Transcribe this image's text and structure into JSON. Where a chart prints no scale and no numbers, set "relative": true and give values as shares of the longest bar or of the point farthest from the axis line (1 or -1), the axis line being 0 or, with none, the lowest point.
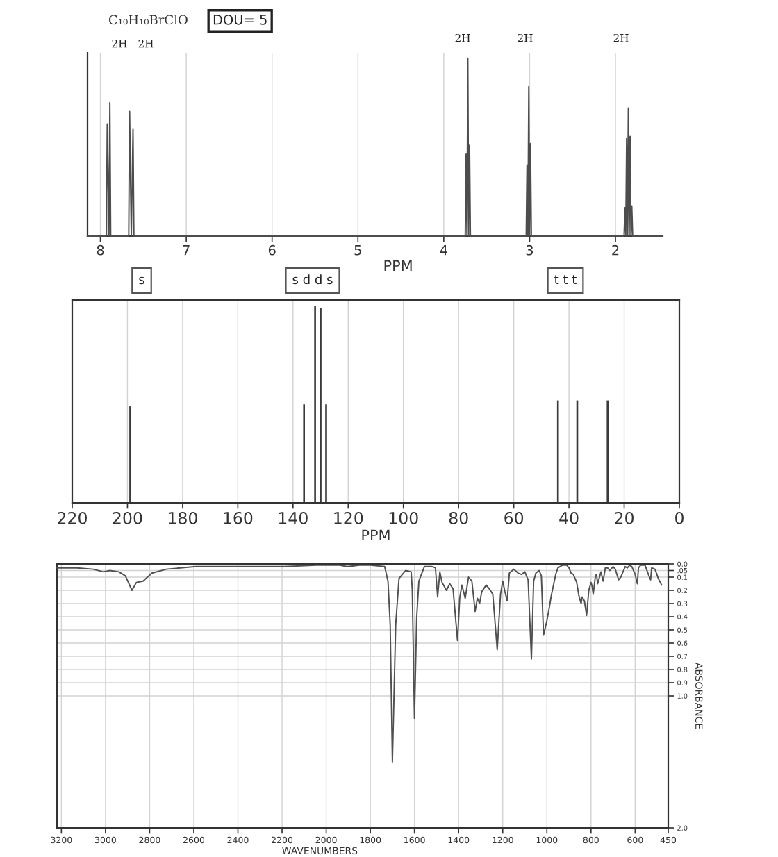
{
  "chart_data": [
    {
      "type": "line",
      "title": "C₁₀H₁₀BrClO",
      "xlabel": "PPM",
      "x": [
        8.15,
        7.93,
        7.92,
        7.9,
        7.89,
        7.88,
        7.67,
        7.66,
        7.64,
        7.62,
        7.61,
        3.75,
        3.74,
        3.73,
        3.72,
        3.71,
        3.7,
        3.69,
        3.04,
        3.03,
        3.02,
        3.01,
        3.0,
        2.99,
        2.98,
        1.9,
        1.89,
        1.88,
        1.87,
        1.86,
        1.85,
        1.84,
        1.83,
        1.82,
        1.81,
        1.8,
        1.45
      ],
      "values": [
        0,
        0,
        0.63,
        0,
        0.75,
        0,
        0,
        0.7,
        0,
        0.6,
        0,
        0,
        0.46,
        0,
        1,
        0,
        0.51,
        0,
        0,
        0.4,
        0,
        0.84,
        0,
        0.52,
        0,
        0,
        0.16,
        0,
        0.55,
        0,
        0.72,
        0,
        0.56,
        0,
        0.17,
        0,
        0
      ],
      "color": "#4d4d4d",
      "relative": true,
      "xlim": [
        8.15,
        1.45
      ],
      "xticks": [
        8,
        7,
        6,
        5,
        4,
        3,
        2
      ],
      "grid": "x",
      "tick_labels": "x",
      "annotations": [
        "DOU= 5",
        "2H",
        "2H",
        "2H",
        "2H",
        "2H"
      ]
    },
    {
      "type": "bar",
      "xlabel": "PPM",
      "x": [
        199,
        136,
        132,
        130,
        128,
        44,
        37,
        26
      ],
      "values": [
        0.49,
        0.5,
        1,
        0.99,
        0.5,
        0.52,
        0.52,
        0.52
      ],
      "color": "#3a3a3a",
      "relative": true,
      "xlim": [
        220,
        0
      ],
      "xticks": [
        220,
        200,
        180,
        160,
        140,
        120,
        100,
        80,
        60,
        40,
        20,
        0
      ],
      "grid": "x",
      "tick_labels": "x",
      "annotations": [
        "s",
        "s d d s",
        "t t t"
      ]
    },
    {
      "type": "line",
      "xlabel": "WAVENUMBERS",
      "ylabel": "ABSORBANCE",
      "x": [
        3220,
        3130,
        3055,
        3010,
        2980,
        2940,
        2910,
        2880,
        2860,
        2830,
        2790,
        2725,
        2590,
        2465,
        2190,
        2045,
        1940,
        1905,
        1850,
        1800,
        1735,
        1720,
        1710,
        1700,
        1685,
        1670,
        1640,
        1615,
        1610,
        1600,
        1590,
        1580,
        1555,
        1520,
        1505,
        1495,
        1485,
        1475,
        1455,
        1440,
        1425,
        1405,
        1395,
        1385,
        1370,
        1355,
        1340,
        1325,
        1315,
        1305,
        1295,
        1275,
        1260,
        1245,
        1225,
        1210,
        1200,
        1190,
        1180,
        1170,
        1150,
        1130,
        1115,
        1100,
        1085,
        1070,
        1060,
        1050,
        1035,
        1025,
        1015,
        1000,
        990,
        980,
        970,
        960,
        950,
        930,
        910,
        900,
        890,
        880,
        865,
        855,
        845,
        840,
        830,
        820,
        810,
        800,
        795,
        790,
        780,
        775,
        770,
        755,
        745,
        735,
        725,
        715,
        700,
        690,
        675,
        665,
        655,
        645,
        635,
        625,
        615,
        600,
        590,
        585,
        575,
        555,
        540,
        530,
        525,
        510,
        495,
        480
      ],
      "values": [
        0.03,
        0.03,
        0.04,
        0.06,
        0.05,
        0.06,
        0.09,
        0.2,
        0.14,
        0.13,
        0.07,
        0.04,
        0.02,
        0.02,
        0.02,
        0.01,
        0.01,
        0.02,
        0.01,
        0.01,
        0.02,
        0.13,
        0.46,
        1.5,
        0.46,
        0.11,
        0.05,
        0.06,
        0.19,
        1.17,
        0.41,
        0.13,
        0.02,
        0.02,
        0.03,
        0.25,
        0.06,
        0.14,
        0.2,
        0.15,
        0.19,
        0.58,
        0.26,
        0.16,
        0.26,
        0.1,
        0.13,
        0.36,
        0.26,
        0.3,
        0.21,
        0.16,
        0.19,
        0.23,
        0.65,
        0.23,
        0.13,
        0.21,
        0.28,
        0.07,
        0.04,
        0.07,
        0.08,
        0.06,
        0.12,
        0.72,
        0.13,
        0.07,
        0.05,
        0.09,
        0.54,
        0.43,
        0.34,
        0.24,
        0.16,
        0.08,
        0.03,
        0.01,
        0.01,
        0.03,
        0.07,
        0.08,
        0.14,
        0.24,
        0.3,
        0.25,
        0.28,
        0.39,
        0.2,
        0.14,
        0.17,
        0.23,
        0.09,
        0.08,
        0.15,
        0.06,
        0.13,
        0.03,
        0.03,
        0.05,
        0.02,
        0.04,
        0.12,
        0.1,
        0.06,
        0.02,
        0.03,
        0.01,
        0.02,
        0.08,
        0.15,
        0.03,
        0.01,
        0.01,
        0.08,
        0.12,
        0.03,
        0.04,
        0.11,
        0.16
      ],
      "color": "#505050",
      "xlim": [
        3220,
        450
      ],
      "xticks": [
        3200,
        3000,
        2800,
        2600,
        2400,
        2200,
        2000,
        1800,
        1600,
        1400,
        1200,
        1000,
        800,
        600,
        450
      ],
      "ylim": [
        2.0,
        0.0
      ],
      "yticks": [
        {
          "value": 0,
          "label": "0.0"
        },
        {
          "value": 0.05,
          "label": ".05"
        },
        0.1,
        0.2,
        0.3,
        0.4,
        0.5,
        0.6,
        0.7,
        0.8,
        0.9,
        {
          "value": 1,
          "label": "1.0"
        },
        {
          "value": 2,
          "label": "2.0"
        }
      ],
      "grid": true
    }
  ]
}
